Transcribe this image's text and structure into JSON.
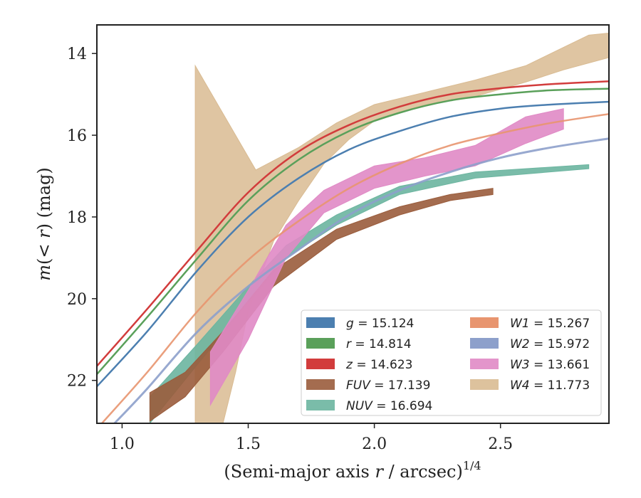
{
  "chart_data": {
    "type": "line",
    "title": "",
    "xlabel": "(Semi-major axis r / arcsec)^1/4",
    "xlabel_parts": {
      "pre": "(Semi-major axis ",
      "var": "r",
      "mid": " / arcsec)",
      "sup": "1/4"
    },
    "ylabel": "m(<r) (mag)",
    "ylabel_parts": {
      "m": "m",
      "open": "(",
      "expr": "< r",
      "close": ")",
      "unit": " (mag)"
    },
    "xlim": [
      0.9,
      2.93
    ],
    "ylim": [
      23.05,
      13.3
    ],
    "y_inverted": true,
    "grid": false,
    "legend_position": "lower-right",
    "x_ticks": [
      1.0,
      1.5,
      2.0,
      2.5
    ],
    "x_tick_labels": [
      "1.0",
      "1.5",
      "2.0",
      "2.5"
    ],
    "y_ticks": [
      14,
      16,
      18,
      20,
      22
    ],
    "y_tick_labels": [
      "14",
      "16",
      "18",
      "20",
      "22"
    ],
    "series": [
      {
        "name": "g",
        "label_value": "= 15.124",
        "color": "#4c7fb0",
        "kind": "line",
        "width": 2.5,
        "points": [
          [
            0.9,
            22.15
          ],
          [
            1.1,
            20.8
          ],
          [
            1.3,
            19.3
          ],
          [
            1.5,
            18.0
          ],
          [
            1.7,
            17.05
          ],
          [
            1.9,
            16.35
          ],
          [
            2.1,
            15.9
          ],
          [
            2.3,
            15.55
          ],
          [
            2.5,
            15.35
          ],
          [
            2.7,
            15.25
          ],
          [
            2.93,
            15.18
          ]
        ]
      },
      {
        "name": "r",
        "label_value": "= 14.814",
        "color": "#5aa05a",
        "kind": "line",
        "width": 2.5,
        "points": [
          [
            0.9,
            21.85
          ],
          [
            1.1,
            20.45
          ],
          [
            1.3,
            19.0
          ],
          [
            1.5,
            17.6
          ],
          [
            1.7,
            16.6
          ],
          [
            1.9,
            15.9
          ],
          [
            2.1,
            15.45
          ],
          [
            2.3,
            15.15
          ],
          [
            2.5,
            15.0
          ],
          [
            2.7,
            14.9
          ],
          [
            2.93,
            14.86
          ]
        ]
      },
      {
        "name": "z",
        "label_value": "= 14.623",
        "color": "#d23c3c",
        "kind": "line",
        "width": 2.5,
        "points": [
          [
            0.9,
            21.65
          ],
          [
            1.1,
            20.25
          ],
          [
            1.3,
            18.8
          ],
          [
            1.5,
            17.4
          ],
          [
            1.7,
            16.4
          ],
          [
            1.9,
            15.75
          ],
          [
            2.1,
            15.3
          ],
          [
            2.3,
            15.0
          ],
          [
            2.5,
            14.85
          ],
          [
            2.7,
            14.75
          ],
          [
            2.93,
            14.68
          ]
        ]
      },
      {
        "name": "FUV",
        "label_value": "= 17.139",
        "color": "#9a5c3c",
        "kind": "band",
        "upper": [
          [
            1.11,
            23.0
          ],
          [
            1.25,
            22.4
          ],
          [
            1.4,
            21.3
          ],
          [
            1.6,
            19.7
          ],
          [
            1.85,
            18.55
          ],
          [
            2.1,
            17.95
          ],
          [
            2.3,
            17.6
          ],
          [
            2.47,
            17.45
          ]
        ],
        "lower": [
          [
            1.11,
            22.3
          ],
          [
            1.25,
            21.8
          ],
          [
            1.4,
            20.8
          ],
          [
            1.6,
            19.3
          ],
          [
            1.85,
            18.3
          ],
          [
            2.1,
            17.75
          ],
          [
            2.3,
            17.45
          ],
          [
            2.47,
            17.3
          ]
        ]
      },
      {
        "name": "NUV",
        "label_value": "= 16.694",
        "color": "#6cb5a0",
        "kind": "band",
        "upper": [
          [
            1.11,
            23.05
          ],
          [
            1.3,
            21.6
          ],
          [
            1.5,
            20.1
          ],
          [
            1.65,
            19.0
          ],
          [
            1.85,
            18.2
          ],
          [
            2.1,
            17.45
          ],
          [
            2.4,
            17.05
          ],
          [
            2.85,
            16.82
          ]
        ],
        "lower": [
          [
            1.11,
            22.4
          ],
          [
            1.3,
            21.1
          ],
          [
            1.5,
            19.7
          ],
          [
            1.65,
            18.7
          ],
          [
            1.85,
            17.95
          ],
          [
            2.1,
            17.25
          ],
          [
            2.4,
            16.9
          ],
          [
            2.85,
            16.72
          ]
        ]
      },
      {
        "name": "W1",
        "label_value": "= 15.267",
        "color": "#e8956f",
        "kind": "line",
        "width": 2.5,
        "points": [
          [
            0.92,
            23.05
          ],
          [
            1.1,
            21.8
          ],
          [
            1.3,
            20.3
          ],
          [
            1.5,
            19.05
          ],
          [
            1.7,
            18.1
          ],
          [
            1.9,
            17.3
          ],
          [
            2.1,
            16.7
          ],
          [
            2.3,
            16.25
          ],
          [
            2.5,
            15.95
          ],
          [
            2.7,
            15.7
          ],
          [
            2.93,
            15.48
          ]
        ]
      },
      {
        "name": "W2",
        "label_value": "= 15.972",
        "color": "#8da0cb",
        "kind": "line",
        "width": 3,
        "points": [
          [
            0.97,
            23.05
          ],
          [
            1.1,
            22.2
          ],
          [
            1.3,
            20.8
          ],
          [
            1.5,
            19.7
          ],
          [
            1.7,
            18.8
          ],
          [
            1.9,
            17.95
          ],
          [
            2.1,
            17.35
          ],
          [
            2.3,
            16.9
          ],
          [
            2.5,
            16.55
          ],
          [
            2.7,
            16.3
          ],
          [
            2.93,
            16.08
          ]
        ]
      },
      {
        "name": "W3",
        "label_value": "= 13.661",
        "color": "#e08ac5",
        "kind": "band",
        "upper": [
          [
            1.35,
            22.6
          ],
          [
            1.5,
            21.0
          ],
          [
            1.65,
            19.0
          ],
          [
            1.8,
            17.9
          ],
          [
            2.0,
            17.3
          ],
          [
            2.2,
            17.0
          ],
          [
            2.4,
            16.75
          ],
          [
            2.6,
            16.2
          ],
          [
            2.75,
            15.85
          ]
        ],
        "lower": [
          [
            1.35,
            21.3
          ],
          [
            1.5,
            19.8
          ],
          [
            1.65,
            18.2
          ],
          [
            1.8,
            17.35
          ],
          [
            2.0,
            16.75
          ],
          [
            2.2,
            16.55
          ],
          [
            2.4,
            16.25
          ],
          [
            2.6,
            15.55
          ],
          [
            2.75,
            15.35
          ]
        ]
      },
      {
        "name": "W4",
        "label_value": "= 11.773",
        "color": "#d9bb92",
        "kind": "band",
        "upper": [
          [
            1.29,
            23.05
          ],
          [
            1.4,
            23.05
          ],
          [
            1.45,
            21.8
          ],
          [
            1.5,
            20.3
          ],
          [
            1.6,
            18.6
          ],
          [
            1.7,
            17.6
          ],
          [
            1.8,
            16.7
          ],
          [
            1.9,
            16.1
          ],
          [
            2.0,
            15.65
          ],
          [
            2.2,
            15.25
          ],
          [
            2.4,
            15.05
          ],
          [
            2.6,
            14.7
          ],
          [
            2.75,
            14.4
          ],
          [
            2.93,
            14.1
          ]
        ],
        "lower": [
          [
            1.29,
            23.05
          ],
          [
            1.29,
            14.3
          ],
          [
            1.53,
            16.85
          ],
          [
            1.7,
            16.3
          ],
          [
            1.85,
            15.7
          ],
          [
            2.0,
            15.25
          ],
          [
            2.2,
            14.95
          ],
          [
            2.4,
            14.65
          ],
          [
            2.6,
            14.3
          ],
          [
            2.75,
            13.85
          ],
          [
            2.85,
            13.55
          ],
          [
            2.93,
            13.5
          ]
        ]
      }
    ]
  }
}
